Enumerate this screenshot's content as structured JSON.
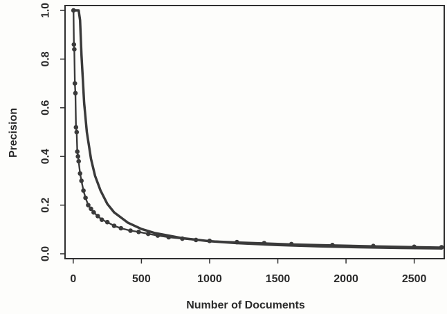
{
  "chart_data": {
    "type": "line",
    "title": "",
    "xlabel": "Number of Documents",
    "ylabel": "Precision",
    "xlim": [
      -60,
      2720
    ],
    "ylim": [
      -0.02,
      1.02
    ],
    "x_ticks": [
      0,
      500,
      1000,
      1500,
      2000,
      2500
    ],
    "y_ticks": [
      0.0,
      0.2,
      0.4,
      0.6,
      0.8,
      1.0
    ],
    "x_tick_labels": [
      "0",
      "500",
      "1000",
      "1500",
      "2000",
      "2500"
    ],
    "y_tick_labels": [
      "0.0",
      "0.2",
      "0.4",
      "0.6",
      "0.8",
      "1.0"
    ],
    "grid": false,
    "series": [
      {
        "style": "smooth-line",
        "color": "#3a3a3a",
        "x": [
          0,
          20,
          40,
          50,
          60,
          80,
          100,
          130,
          160,
          200,
          250,
          300,
          400,
          500,
          600,
          800,
          1000,
          1200,
          1500,
          1800,
          2100,
          2400,
          2700
        ],
        "y": [
          1.0,
          1.0,
          1.0,
          0.96,
          0.82,
          0.62,
          0.5,
          0.39,
          0.32,
          0.26,
          0.205,
          0.17,
          0.128,
          0.102,
          0.085,
          0.064,
          0.052,
          0.044,
          0.036,
          0.031,
          0.027,
          0.024,
          0.022
        ]
      },
      {
        "style": "line-with-points",
        "color": "#3a3a3a",
        "x": [
          2,
          5,
          8,
          12,
          16,
          20,
          25,
          30,
          35,
          40,
          50,
          60,
          75,
          90,
          110,
          130,
          150,
          180,
          210,
          250,
          300,
          350,
          420,
          480,
          550,
          620,
          700,
          800,
          900,
          1000,
          1200,
          1400,
          1600,
          1900,
          2200,
          2500,
          2700
        ],
        "y": [
          1.0,
          0.86,
          0.84,
          0.7,
          0.66,
          0.52,
          0.5,
          0.42,
          0.4,
          0.38,
          0.33,
          0.3,
          0.26,
          0.23,
          0.2,
          0.185,
          0.17,
          0.155,
          0.14,
          0.13,
          0.115,
          0.105,
          0.095,
          0.09,
          0.082,
          0.075,
          0.068,
          0.062,
          0.057,
          0.053,
          0.048,
          0.044,
          0.04,
          0.036,
          0.032,
          0.029,
          0.027
        ]
      }
    ]
  }
}
